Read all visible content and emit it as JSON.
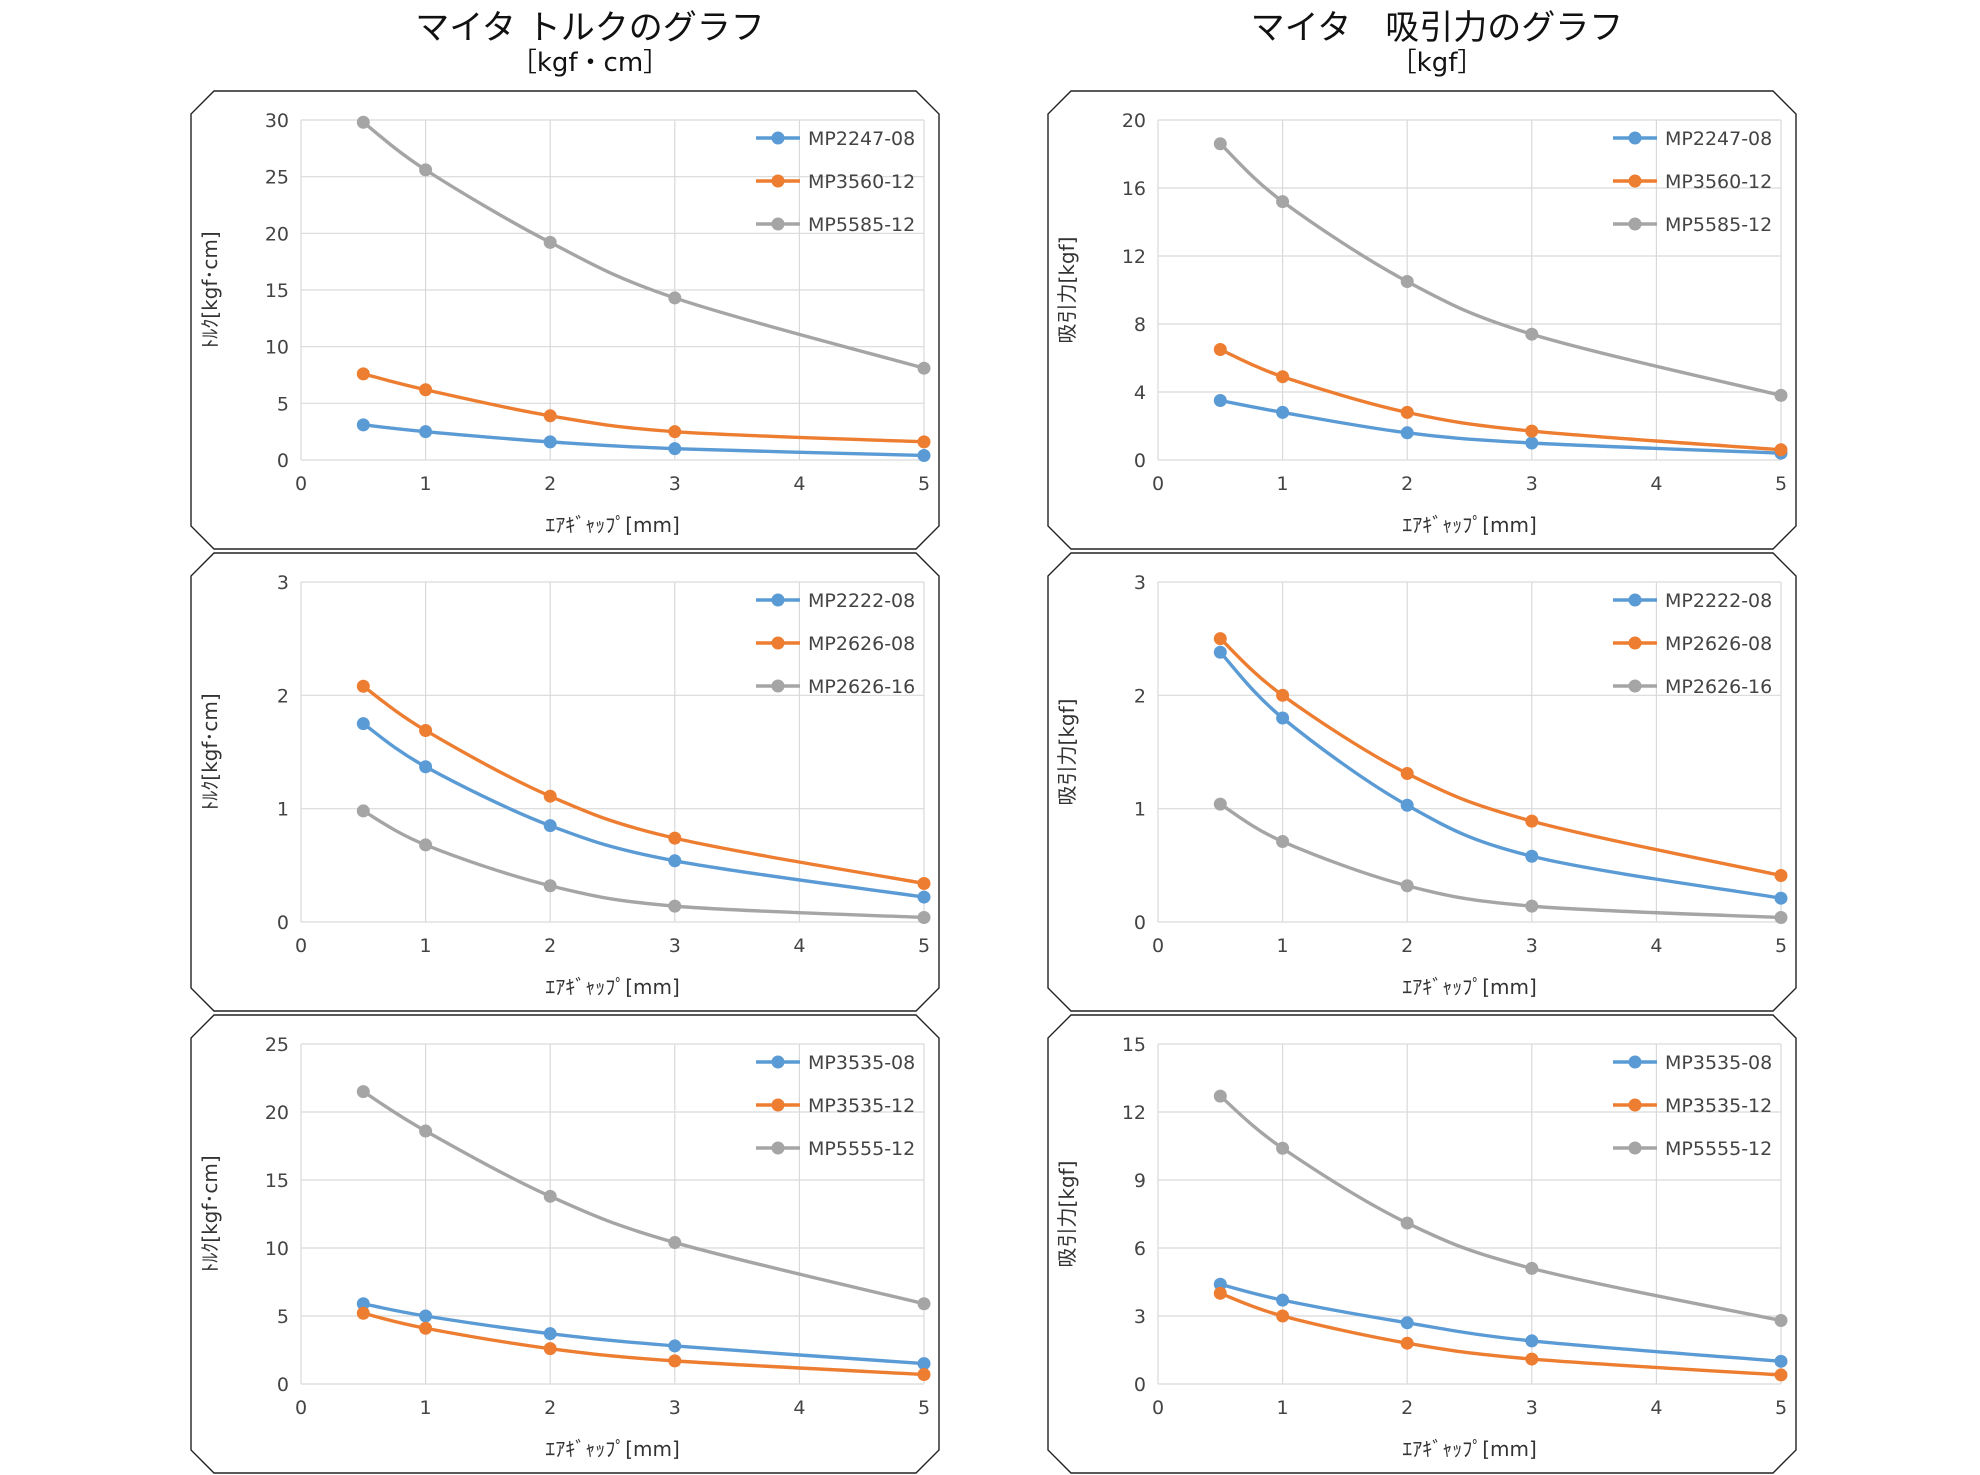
{
  "titles": {
    "left": {
      "main": "マイタ トルクのグラフ",
      "unit": "［kgf・cm］"
    },
    "right": {
      "main": "マイタ　吸引力のグラフ",
      "unit": "［kgf］"
    }
  },
  "colors": {
    "series_1": "#5B9BD5",
    "series_2": "#ED7D31",
    "series_3": "#A5A5A5"
  },
  "chart_data": [
    {
      "type": "line",
      "xlabel": "ｴｱｷﾞｬｯﾌﾟ[mm]",
      "ylabel": "ﾄﾙｸ[kgf･cm]",
      "xlim": [
        0,
        5
      ],
      "ylim": [
        0,
        30
      ],
      "xticks": [
        "0",
        "1",
        "2",
        "3",
        "4",
        "5"
      ],
      "yticks": [
        "0",
        "5",
        "10",
        "15",
        "20",
        "25",
        "30"
      ],
      "grid": true,
      "legend": "top-right",
      "x": [
        0.5,
        1,
        2,
        3,
        5
      ],
      "series": [
        {
          "name": "MP2247-08",
          "values": [
            3.1,
            2.5,
            1.6,
            1.0,
            0.4
          ]
        },
        {
          "name": "MP3560-12",
          "values": [
            7.6,
            6.2,
            3.9,
            2.5,
            1.6
          ]
        },
        {
          "name": "MP5585-12",
          "values": [
            29.8,
            25.6,
            19.2,
            14.3,
            8.1
          ]
        }
      ]
    },
    {
      "type": "line",
      "xlabel": "ｴｱｷﾞｬｯﾌﾟ[mm]",
      "ylabel": "吸引力[kgf]",
      "xlim": [
        0,
        5
      ],
      "ylim": [
        0,
        20
      ],
      "xticks": [
        "0",
        "1",
        "2",
        "3",
        "4",
        "5"
      ],
      "yticks": [
        "0",
        "4",
        "8",
        "12",
        "16",
        "20"
      ],
      "grid": true,
      "legend": "top-right",
      "x": [
        0.5,
        1,
        2,
        3,
        5
      ],
      "series": [
        {
          "name": "MP2247-08",
          "values": [
            3.5,
            2.8,
            1.6,
            1.0,
            0.4
          ]
        },
        {
          "name": "MP3560-12",
          "values": [
            6.5,
            4.9,
            2.8,
            1.7,
            0.6
          ]
        },
        {
          "name": "MP5585-12",
          "values": [
            18.6,
            15.2,
            10.5,
            7.4,
            3.8
          ]
        }
      ]
    },
    {
      "type": "line",
      "xlabel": "ｴｱｷﾞｬｯﾌﾟ[mm]",
      "ylabel": "ﾄﾙｸ[kgf･cm]",
      "xlim": [
        0,
        5
      ],
      "ylim": [
        0,
        3
      ],
      "xticks": [
        "0",
        "1",
        "2",
        "3",
        "4",
        "5"
      ],
      "yticks": [
        "0",
        "1",
        "2",
        "3"
      ],
      "grid": true,
      "legend": "top-right",
      "x": [
        0.5,
        1,
        2,
        3,
        5
      ],
      "series": [
        {
          "name": "MP2222-08",
          "values": [
            1.75,
            1.37,
            0.85,
            0.54,
            0.22
          ]
        },
        {
          "name": "MP2626-08",
          "values": [
            2.08,
            1.69,
            1.11,
            0.74,
            0.34
          ]
        },
        {
          "name": "MP2626-16",
          "values": [
            0.98,
            0.68,
            0.32,
            0.14,
            0.04
          ]
        }
      ]
    },
    {
      "type": "line",
      "xlabel": "ｴｱｷﾞｬｯﾌﾟ[mm]",
      "ylabel": "吸引力[kgf]",
      "xlim": [
        0,
        5
      ],
      "ylim": [
        0,
        3
      ],
      "xticks": [
        "0",
        "1",
        "2",
        "3",
        "4",
        "5"
      ],
      "yticks": [
        "0",
        "1",
        "2",
        "3"
      ],
      "grid": true,
      "legend": "top-right",
      "x": [
        0.5,
        1,
        2,
        3,
        5
      ],
      "series": [
        {
          "name": "MP2222-08",
          "values": [
            2.38,
            1.8,
            1.03,
            0.58,
            0.21
          ]
        },
        {
          "name": "MP2626-08",
          "values": [
            2.5,
            2.0,
            1.31,
            0.89,
            0.41
          ]
        },
        {
          "name": "MP2626-16",
          "values": [
            1.04,
            0.71,
            0.32,
            0.14,
            0.04
          ]
        }
      ]
    },
    {
      "type": "line",
      "xlabel": "ｴｱｷﾞｬｯﾌﾟ[mm]",
      "ylabel": "ﾄﾙｸ[kgf･cm]",
      "xlim": [
        0,
        5
      ],
      "ylim": [
        0,
        25
      ],
      "xticks": [
        "0",
        "1",
        "2",
        "3",
        "4",
        "5"
      ],
      "yticks": [
        "0",
        "5",
        "10",
        "15",
        "20",
        "25"
      ],
      "grid": true,
      "legend": "top-right",
      "x": [
        0.5,
        1,
        2,
        3,
        5
      ],
      "series": [
        {
          "name": "MP3535-08",
          "values": [
            5.9,
            5.0,
            3.7,
            2.8,
            1.5
          ]
        },
        {
          "name": "MP3535-12",
          "values": [
            5.2,
            4.1,
            2.6,
            1.7,
            0.7
          ]
        },
        {
          "name": "MP5555-12",
          "values": [
            21.5,
            18.6,
            13.8,
            10.4,
            5.9
          ]
        }
      ]
    },
    {
      "type": "line",
      "xlabel": "ｴｱｷﾞｬｯﾌﾟ[mm]",
      "ylabel": "吸引力[kgf]",
      "xlim": [
        0,
        5
      ],
      "ylim": [
        0,
        15
      ],
      "xticks": [
        "0",
        "1",
        "2",
        "3",
        "4",
        "5"
      ],
      "yticks": [
        "0",
        "3",
        "6",
        "9",
        "12",
        "15"
      ],
      "grid": true,
      "legend": "top-right",
      "x": [
        0.5,
        1,
        2,
        3,
        5
      ],
      "series": [
        {
          "name": "MP3535-08",
          "values": [
            4.4,
            3.7,
            2.7,
            1.9,
            1.0
          ]
        },
        {
          "name": "MP3535-12",
          "values": [
            4.0,
            3.0,
            1.8,
            1.1,
            0.4
          ]
        },
        {
          "name": "MP5555-12",
          "values": [
            12.7,
            10.4,
            7.1,
            5.1,
            2.8
          ]
        }
      ]
    }
  ]
}
